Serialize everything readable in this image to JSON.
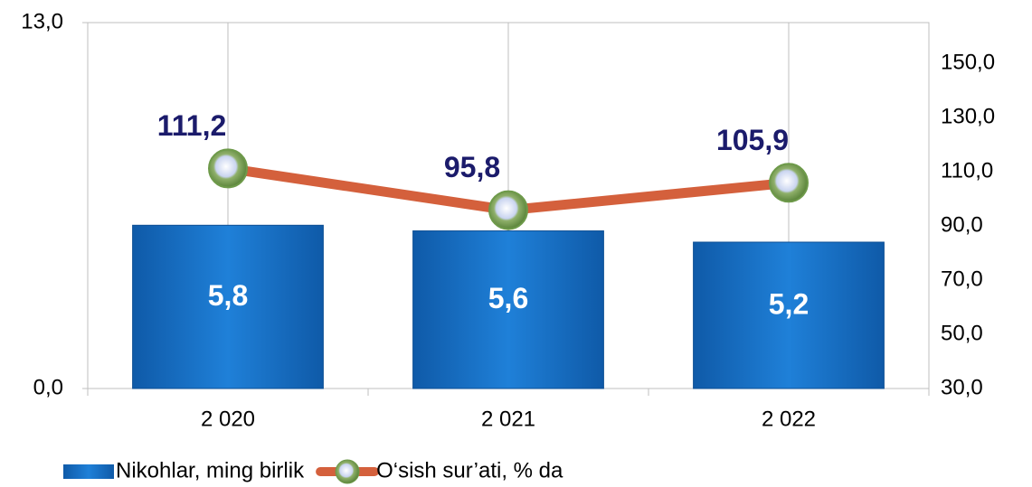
{
  "chart_data": {
    "type": "bar_line",
    "categories": [
      "2 020",
      "2 021",
      "2 022"
    ],
    "series": [
      {
        "name": "Nikohlar, ming birlik",
        "type": "bar",
        "color": "#1a73c9",
        "values": [
          5.8,
          5.6,
          5.2
        ],
        "value_labels": [
          "5,8",
          "5,6",
          "5,2"
        ]
      },
      {
        "name": "O‘sish sur’ati, % da",
        "type": "line",
        "axis": "y2",
        "color": "#d4603c",
        "marker_color": "#6e9a4a",
        "values": [
          111.2,
          95.8,
          105.9
        ],
        "value_labels": [
          "111,2",
          "95,8",
          "105,9"
        ]
      }
    ],
    "ylim": [
      0,
      13
    ],
    "yticks": [
      {
        "value": 0,
        "label": "0,0"
      },
      {
        "value": 13,
        "label": "13,0"
      }
    ],
    "y2lim": [
      30,
      165
    ],
    "y2ticks": [
      {
        "value": 30,
        "label": "30,0"
      },
      {
        "value": 50,
        "label": "50,0"
      },
      {
        "value": 70,
        "label": "70,0"
      },
      {
        "value": 90,
        "label": "90,0"
      },
      {
        "value": 110,
        "label": "110,0"
      },
      {
        "value": 130,
        "label": "130,0"
      },
      {
        "value": 150,
        "label": "150,0"
      }
    ],
    "legend": "bottom-left"
  }
}
